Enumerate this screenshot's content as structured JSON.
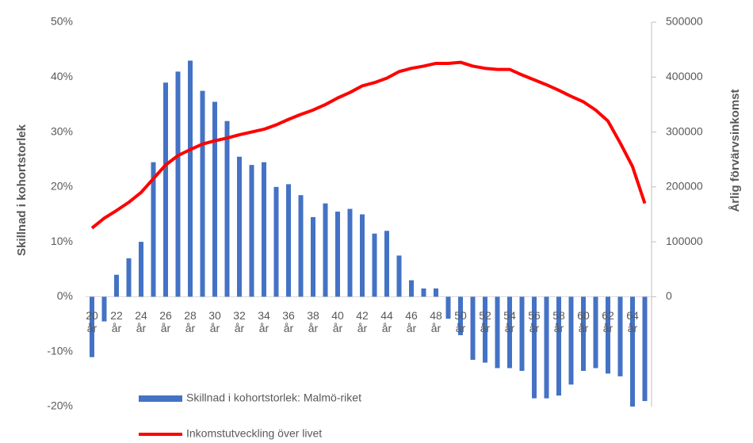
{
  "chart_data": {
    "type": "bar",
    "categories": [
      "20 år",
      null,
      "22 år",
      null,
      "24 år",
      null,
      "26 år",
      null,
      "28 år",
      null,
      "30 år",
      null,
      "32 år",
      null,
      "34 år",
      null,
      "36 år",
      null,
      "38 år",
      null,
      "40 år",
      null,
      "42 år",
      null,
      "44 år",
      null,
      "46 år",
      null,
      "48 år",
      null,
      "50 år",
      null,
      "52 år",
      null,
      "54 år",
      null,
      "56 år",
      null,
      "58 år",
      null,
      "60 år",
      null,
      "62 år",
      null,
      "64 år",
      null
    ],
    "series": [
      {
        "name": "Skillnad i kohortstorlek: Malmö-riket",
        "type": "bar",
        "color": "#4472c4",
        "values": [
          -11,
          -4.5,
          4,
          7,
          10,
          24.5,
          39,
          41,
          43,
          37.5,
          35.5,
          32,
          25.5,
          24,
          24.5,
          20,
          20.5,
          18.5,
          14.5,
          17,
          15.5,
          16,
          15,
          11.5,
          12,
          7.5,
          3,
          1.5,
          1.5,
          -4,
          -7,
          -11.5,
          -12,
          -13,
          -13,
          -13.5,
          -18.5,
          -18.5,
          -18,
          -16,
          -13.5,
          -13,
          -14,
          -14.5,
          -20,
          -19
        ]
      },
      {
        "name": "Inkomstutveckling över livet",
        "type": "line",
        "color": "#ff0000",
        "axis": "y2",
        "values": [
          125000,
          143000,
          157000,
          172000,
          190000,
          215000,
          240000,
          257000,
          268000,
          278000,
          284000,
          289000,
          295000,
          300000,
          305000,
          313000,
          323000,
          332000,
          340000,
          350000,
          362000,
          372000,
          384000,
          390000,
          398000,
          410000,
          416000,
          420000,
          425000,
          425000,
          427000,
          420000,
          416000,
          414000,
          414000,
          404000,
          395000,
          386000,
          376000,
          365000,
          355000,
          340000,
          320000,
          280000,
          237000,
          170000
        ]
      }
    ],
    "y_label": "Skillnad i kohortstorlek",
    "y2_label": "Årlig förvärvsinkomst",
    "ylim": [
      -20,
      50
    ],
    "yticks": [
      {
        "value": -20,
        "label": "-20%"
      },
      {
        "value": -10,
        "label": "-10%"
      },
      {
        "value": 0,
        "label": "0%"
      },
      {
        "value": 10,
        "label": "10%"
      },
      {
        "value": 20,
        "label": "20%"
      },
      {
        "value": 30,
        "label": "30%"
      },
      {
        "value": 40,
        "label": "40%"
      },
      {
        "value": 50,
        "label": "50%"
      }
    ],
    "y2lim": [
      -200000,
      500000
    ],
    "y2ticks": [
      0,
      100000,
      200000,
      300000,
      400000,
      500000
    ],
    "legend": "bottom"
  }
}
